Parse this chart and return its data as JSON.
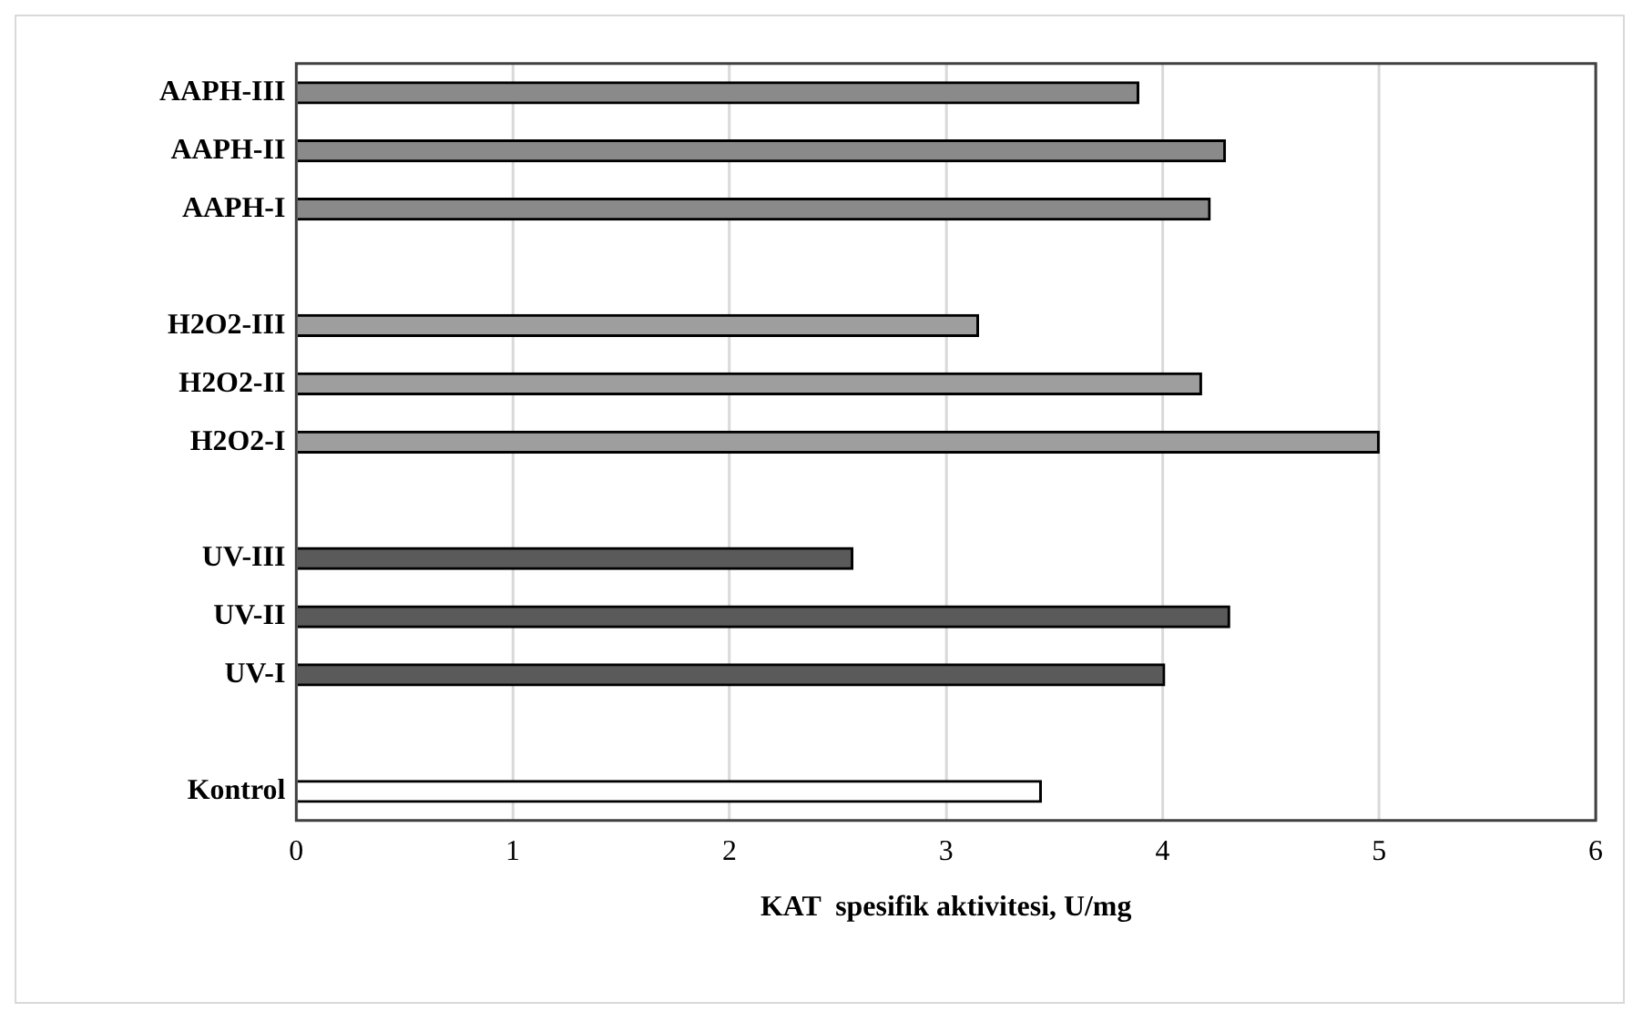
{
  "chart_data": {
    "type": "bar",
    "orientation": "horizontal",
    "categories": [
      "AAPH-III",
      "AAPH-II",
      "AAPH-I",
      null,
      "H2O2-III",
      "H2O2-II",
      "H2O2-I",
      null,
      "UV-III",
      "UV-II",
      "UV-I",
      null,
      "Kontrol"
    ],
    "values": [
      3.89,
      4.29,
      4.22,
      null,
      3.15,
      4.18,
      5.0,
      null,
      2.57,
      4.31,
      4.01,
      null,
      3.44
    ],
    "colors": [
      "#8a8a8a",
      "#8a8a8a",
      "#8a8a8a",
      null,
      "#9e9e9e",
      "#9e9e9e",
      "#9e9e9e",
      null,
      "#5a5a5a",
      "#5a5a5a",
      "#5a5a5a",
      null,
      "#ffffff"
    ],
    "xlabel": "KAT  spesifik aktivitesi, U/mg",
    "xlim": [
      0,
      6
    ],
    "xticks": [
      0,
      1,
      2,
      3,
      4,
      5,
      6
    ],
    "grid": "x",
    "legend": false
  }
}
